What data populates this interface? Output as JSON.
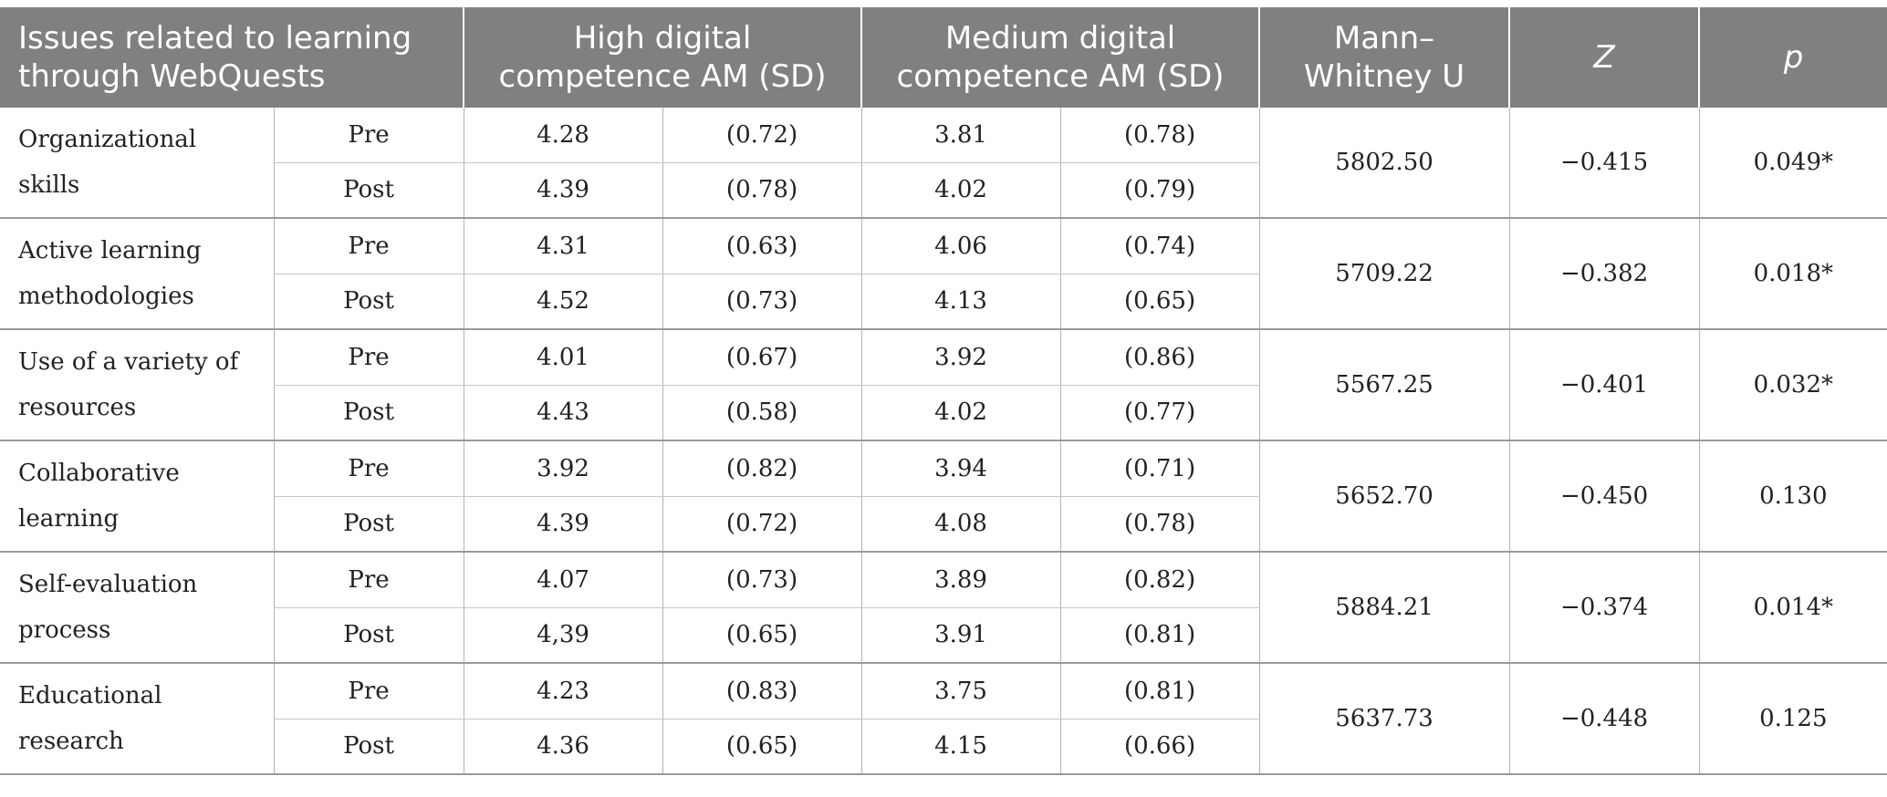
{
  "table": {
    "headers": {
      "issues": "Issues related to learning through WebQuests",
      "high": "High digital competence AM (SD)",
      "medium": "Medium digital competence AM (SD)",
      "mann": "Mann–Whitney U",
      "z": "Z",
      "p": "p"
    },
    "rows": [
      {
        "label": "Organizational skills",
        "pre": {
          "phase": "Pre",
          "high_am": "4.28",
          "high_sd": "(0.72)",
          "med_am": "3.81",
          "med_sd": "(0.78)"
        },
        "post": {
          "phase": "Post",
          "high_am": "4.39",
          "high_sd": "(0.78)",
          "med_am": "4.02",
          "med_sd": "(0.79)"
        },
        "u": "5802.50",
        "z": "−0.415",
        "p": "0.049*"
      },
      {
        "label": "Active learning methodologies",
        "pre": {
          "phase": "Pre",
          "high_am": "4.31",
          "high_sd": "(0.63)",
          "med_am": "4.06",
          "med_sd": "(0.74)"
        },
        "post": {
          "phase": "Post",
          "high_am": "4.52",
          "high_sd": "(0.73)",
          "med_am": "4.13",
          "med_sd": "(0.65)"
        },
        "u": "5709.22",
        "z": "−0.382",
        "p": "0.018*"
      },
      {
        "label": "Use of a variety of resources",
        "pre": {
          "phase": "Pre",
          "high_am": "4.01",
          "high_sd": "(0.67)",
          "med_am": "3.92",
          "med_sd": "(0.86)"
        },
        "post": {
          "phase": "Post",
          "high_am": "4.43",
          "high_sd": "(0.58)",
          "med_am": "4.02",
          "med_sd": "(0.77)"
        },
        "u": "5567.25",
        "z": "−0.401",
        "p": "0.032*"
      },
      {
        "label": "Collaborative learning",
        "pre": {
          "phase": "Pre",
          "high_am": "3.92",
          "high_sd": "(0.82)",
          "med_am": "3.94",
          "med_sd": "(0.71)"
        },
        "post": {
          "phase": "Post",
          "high_am": "4.39",
          "high_sd": "(0.72)",
          "med_am": "4.08",
          "med_sd": "(0.78)"
        },
        "u": "5652.70",
        "z": "−0.450",
        "p": "0.130"
      },
      {
        "label": "Self-evaluation process",
        "pre": {
          "phase": "Pre",
          "high_am": "4.07",
          "high_sd": "(0.73)",
          "med_am": "3.89",
          "med_sd": "(0.82)"
        },
        "post": {
          "phase": "Post",
          "high_am": "4,39",
          "high_sd": "(0.65)",
          "med_am": "3.91",
          "med_sd": "(0.81)"
        },
        "u": "5884.21",
        "z": "−0.374",
        "p": "0.014*"
      },
      {
        "label": "Educational research",
        "pre": {
          "phase": "Pre",
          "high_am": "4.23",
          "high_sd": "(0.83)",
          "med_am": "3.75",
          "med_sd": "(0.81)"
        },
        "post": {
          "phase": "Post",
          "high_am": "4.36",
          "high_sd": "(0.65)",
          "med_am": "4.15",
          "med_sd": "(0.66)"
        },
        "u": "5637.73",
        "z": "−0.448",
        "p": "0.125"
      }
    ]
  }
}
